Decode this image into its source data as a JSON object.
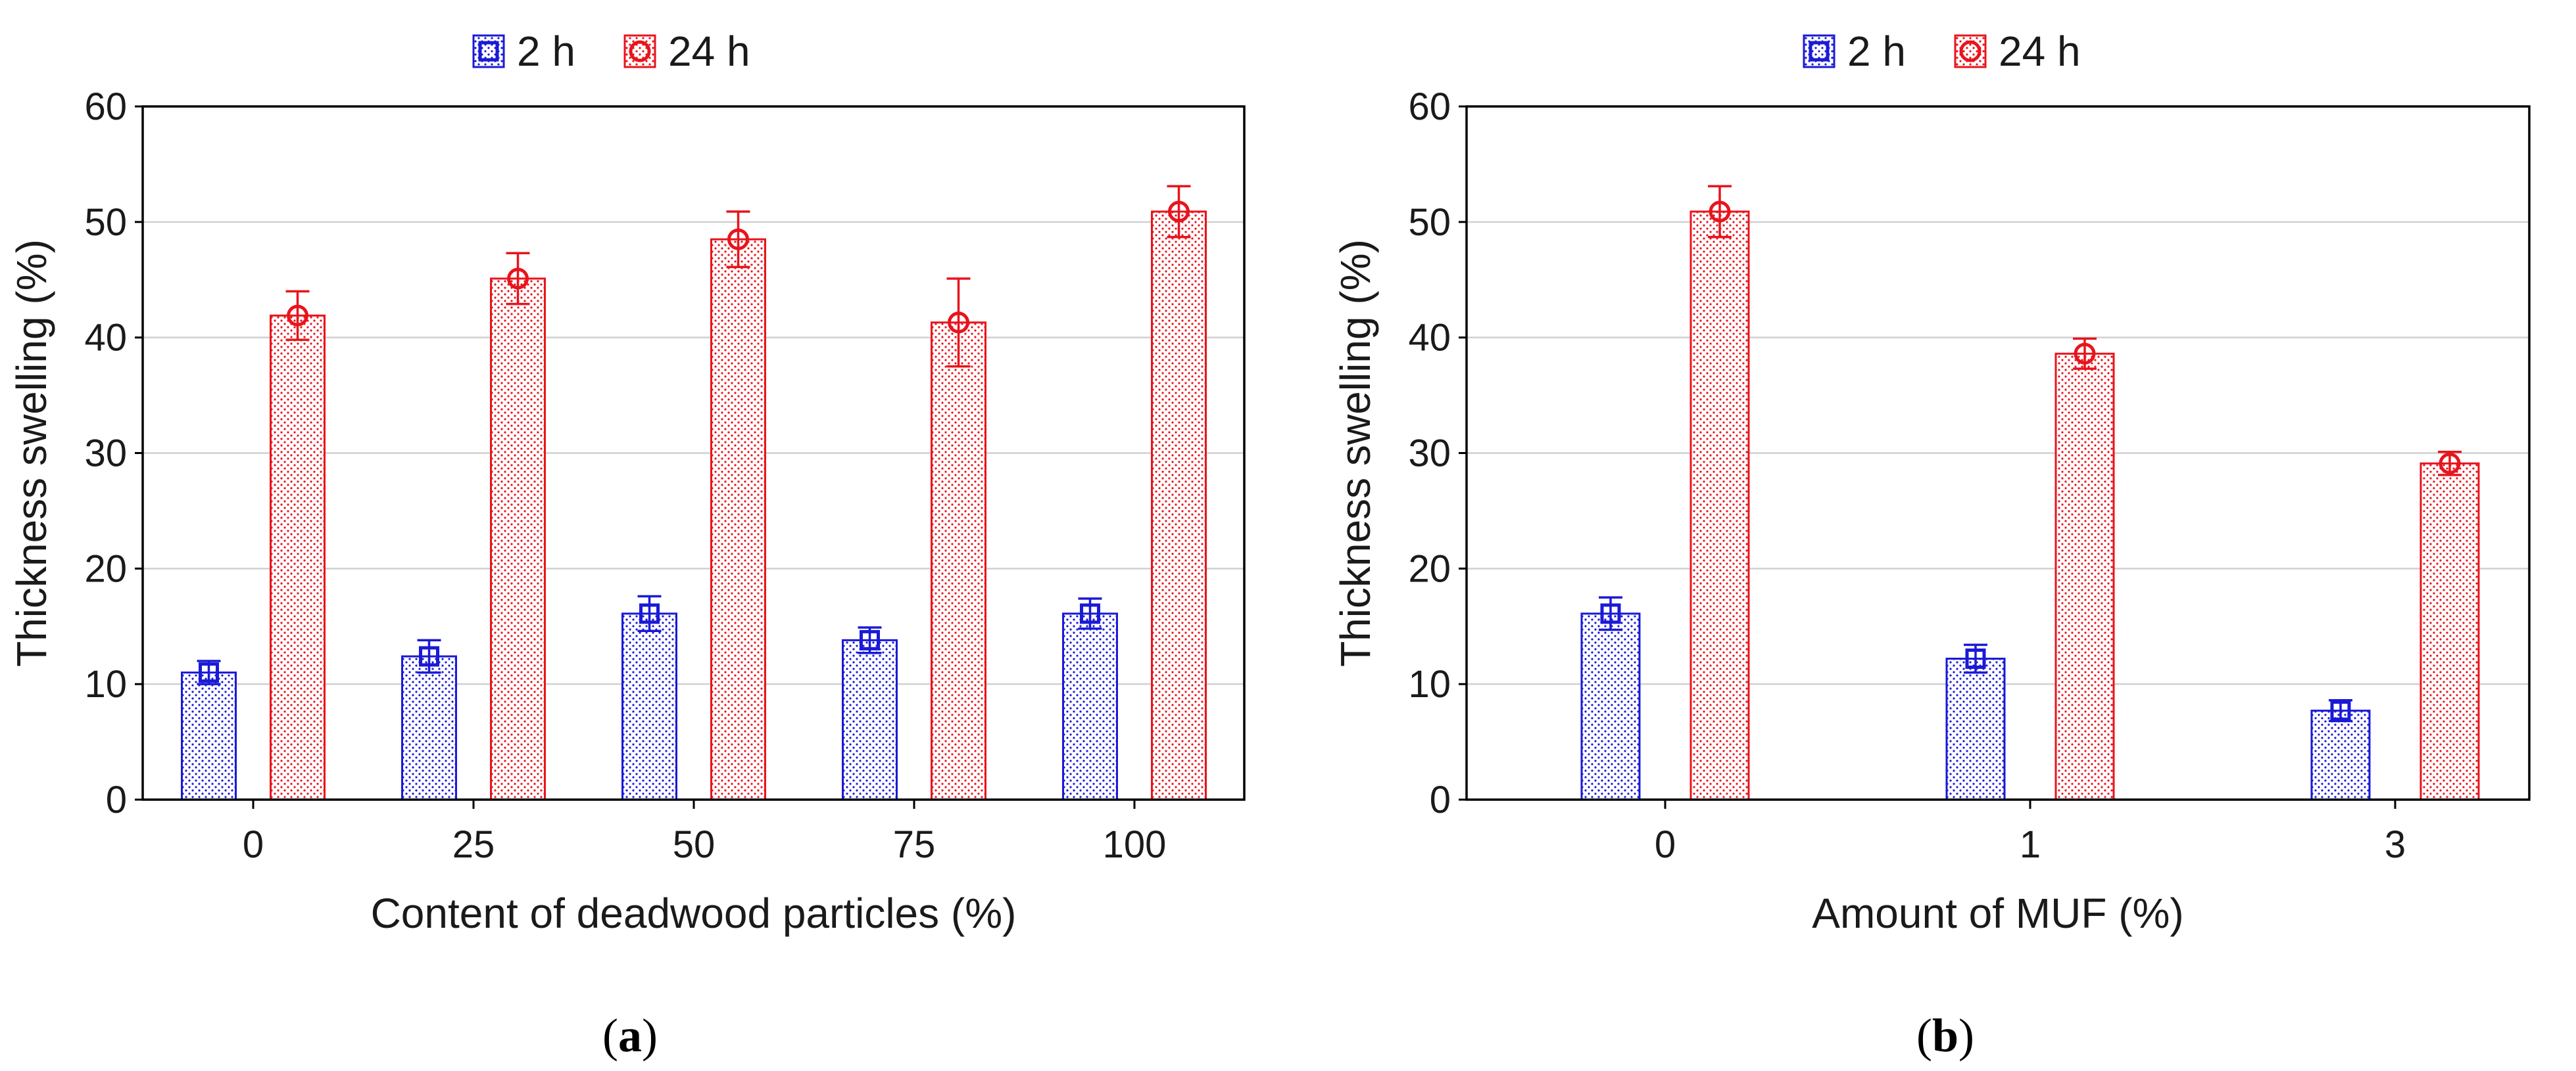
{
  "figure": {
    "panels": [
      {
        "id": "a",
        "tag_open": "(",
        "tag_letter": "a",
        "tag_close": ")"
      },
      {
        "id": "b",
        "tag_open": "(",
        "tag_letter": "b",
        "tag_close": ")"
      }
    ]
  },
  "colors": {
    "series_2h": "#1a1ad6",
    "series_24h": "#e8141c",
    "grid": "#d0d0d0",
    "axis": "#000000"
  },
  "chart_data": [
    {
      "type": "bar",
      "panel": "a",
      "title": "",
      "xlabel": "Content of deadwood particles (%)",
      "ylabel": "Thickness swelling (%)",
      "categories": [
        "0",
        "25",
        "50",
        "75",
        "100"
      ],
      "ylim": [
        0,
        60
      ],
      "yticks": [
        0,
        10,
        20,
        30,
        40,
        50,
        60
      ],
      "grid": true,
      "legend": "top-center",
      "series": [
        {
          "name": "2 h",
          "marker": "square",
          "values": [
            11.0,
            12.4,
            16.1,
            13.8,
            16.1
          ],
          "errors": [
            1.0,
            1.4,
            1.5,
            1.1,
            1.3
          ]
        },
        {
          "name": "24 h",
          "marker": "circle",
          "values": [
            41.9,
            45.1,
            48.5,
            41.3,
            50.9
          ],
          "errors": [
            2.1,
            2.2,
            2.4,
            3.8,
            2.2
          ]
        }
      ]
    },
    {
      "type": "bar",
      "panel": "b",
      "title": "",
      "xlabel": "Amount of MUF (%)",
      "ylabel": "Thickness swelling (%)",
      "categories": [
        "0",
        "1",
        "3"
      ],
      "ylim": [
        0,
        60
      ],
      "yticks": [
        0,
        10,
        20,
        30,
        40,
        50,
        60
      ],
      "grid": true,
      "legend": "top-center",
      "series": [
        {
          "name": "2 h",
          "marker": "square",
          "values": [
            16.1,
            12.2,
            7.7
          ],
          "errors": [
            1.4,
            1.2,
            0.9
          ]
        },
        {
          "name": "24 h",
          "marker": "circle",
          "values": [
            50.9,
            38.6,
            29.1
          ],
          "errors": [
            2.2,
            1.3,
            1.0
          ]
        }
      ]
    }
  ]
}
